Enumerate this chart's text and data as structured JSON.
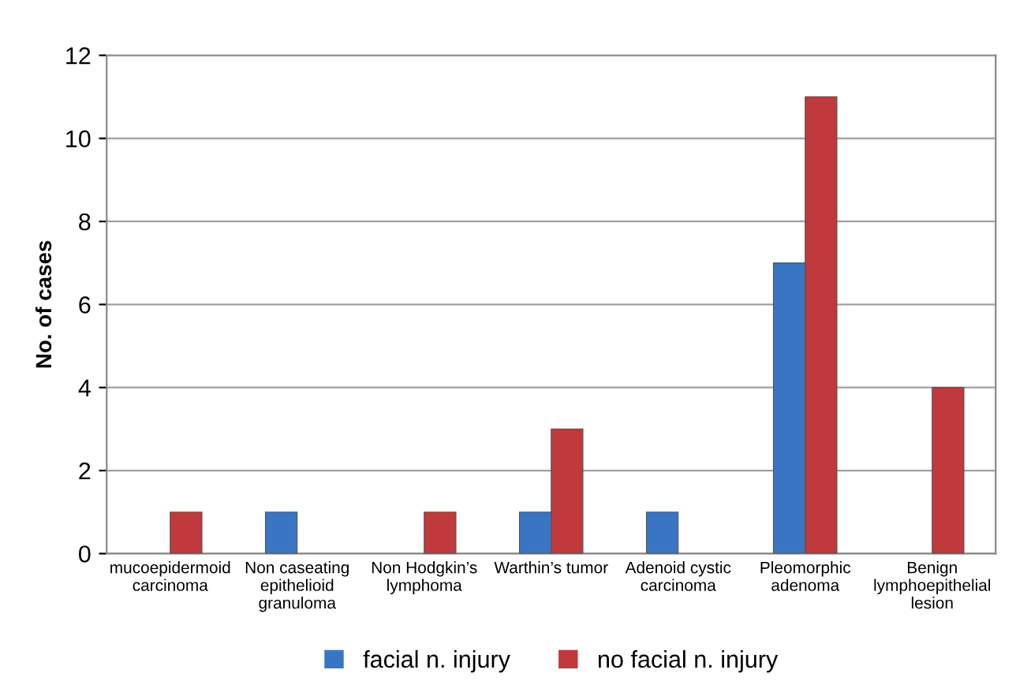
{
  "chart_data": {
    "type": "bar",
    "ylabel": "No. of cases",
    "categories": [
      "mucoepidermoid\ncarcinoma",
      "Non caseating\nepithelioid\ngranuloma",
      "Non Hodgkin’s\nlymphoma",
      "Warthin’s tumor",
      "Adenoid cystic\ncarcinoma",
      "Pleomorphic\nadenoma",
      "Benign\nlymphoepithelial\nlesion"
    ],
    "series": [
      {
        "name": "facial n. injury",
        "color": "#3a75c4",
        "values": [
          null,
          1,
          null,
          1,
          1,
          7,
          null
        ]
      },
      {
        "name": "no facial n. injury",
        "color": "#c0393d",
        "values": [
          1,
          null,
          1,
          3,
          null,
          11,
          4
        ]
      }
    ],
    "ylim": [
      0,
      12
    ],
    "yticks": [
      0,
      2,
      4,
      6,
      8,
      10,
      12
    ],
    "grid": "y",
    "legend": "bottom"
  }
}
